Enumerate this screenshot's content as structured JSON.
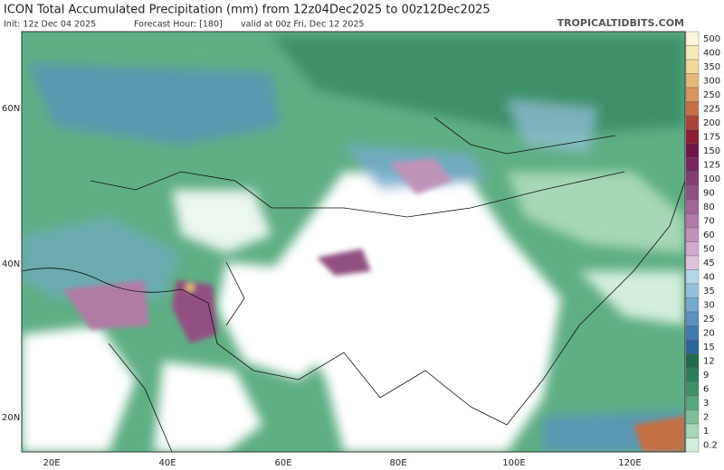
{
  "header": {
    "title": "ICON Total Accumulated Precipitation (mm) from 12z04Dec2025 to 00z12Dec2025",
    "init": "Init: 12z Dec 04 2025",
    "forecast_hour": "Forecast Hour: [180]",
    "valid": "valid at 00z Fri, Dec 12 2025",
    "site": "TROPICALTIDBITS.COM"
  },
  "map": {
    "lat_labels": [
      "60N",
      "40N",
      "20N"
    ],
    "lon_labels": [
      "20E",
      "40E",
      "60E",
      "80E",
      "100E",
      "120E"
    ]
  },
  "colorbar": {
    "levels": [
      {
        "label": "500",
        "color": "#fbf6d9"
      },
      {
        "label": "400",
        "color": "#f6ecb8"
      },
      {
        "label": "350",
        "color": "#f0d99a"
      },
      {
        "label": "300",
        "color": "#e5b97c"
      },
      {
        "label": "250",
        "color": "#d8955f"
      },
      {
        "label": "225",
        "color": "#c46f45"
      },
      {
        "label": "200",
        "color": "#a8443a"
      },
      {
        "label": "175",
        "color": "#8a1c35"
      },
      {
        "label": "150",
        "color": "#6e1445"
      },
      {
        "label": "125",
        "color": "#77275c"
      },
      {
        "label": "100",
        "color": "#843c6e"
      },
      {
        "label": "90",
        "color": "#925081"
      },
      {
        "label": "80",
        "color": "#a06593"
      },
      {
        "label": "70",
        "color": "#b07ba6"
      },
      {
        "label": "60",
        "color": "#c093b9"
      },
      {
        "label": "50",
        "color": "#d0abcb"
      },
      {
        "label": "45",
        "color": "#e0c4dc"
      },
      {
        "label": "40",
        "color": "#b5d7ea"
      },
      {
        "label": "35",
        "color": "#94c2de"
      },
      {
        "label": "30",
        "color": "#75aacf"
      },
      {
        "label": "25",
        "color": "#5892bf"
      },
      {
        "label": "20",
        "color": "#3f7bae"
      },
      {
        "label": "15",
        "color": "#2c6599"
      },
      {
        "label": "12",
        "color": "#1e6a4c"
      },
      {
        "label": "9",
        "color": "#2c7d5a"
      },
      {
        "label": "6",
        "color": "#3d9169"
      },
      {
        "label": "3",
        "color": "#57a77c"
      },
      {
        "label": "2",
        "color": "#7cbf96"
      },
      {
        "label": "1",
        "color": "#a6d7b6"
      },
      {
        "label": "0.2",
        "color": "#d3eedc"
      }
    ]
  }
}
